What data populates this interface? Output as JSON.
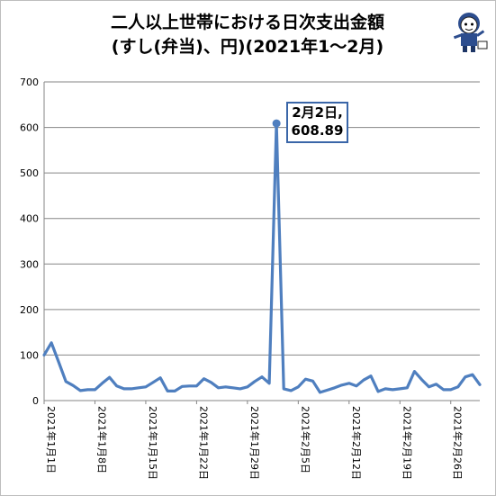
{
  "chart_data": {
    "type": "line",
    "title_line1": "二人以上世帯における日次支出金額",
    "title_line2": "(すし(弁当)、円)(2021年1〜2月)",
    "ylim": [
      0,
      700
    ],
    "y_ticks": [
      0,
      100,
      200,
      300,
      400,
      500,
      600,
      700
    ],
    "x_tick_labels": [
      "2021年1月1日",
      "2021年1月8日",
      "2021年1月15日",
      "2021年1月22日",
      "2021年1月29日",
      "2021年2月5日",
      "2021年2月12日",
      "2021年2月19日",
      "2021年2月26日"
    ],
    "grid": true,
    "line_color": "#4f7fbf",
    "series": [
      {
        "values": [
          100,
          127,
          85,
          42,
          33,
          22,
          24,
          24,
          38,
          51,
          32,
          26,
          26,
          28,
          30,
          40,
          50,
          21,
          21,
          31,
          32,
          32,
          48,
          40,
          28,
          30,
          28,
          26,
          30,
          42,
          52,
          38,
          608.89,
          26,
          22,
          30,
          47,
          43,
          18,
          23,
          28,
          34,
          38,
          32,
          45,
          54,
          20,
          26,
          24,
          26,
          28,
          64,
          46,
          30,
          36,
          24,
          24,
          30,
          52,
          57,
          35
        ]
      }
    ],
    "annotation": {
      "line1": "2月2日,",
      "line2": "608.89",
      "index": 32
    }
  }
}
